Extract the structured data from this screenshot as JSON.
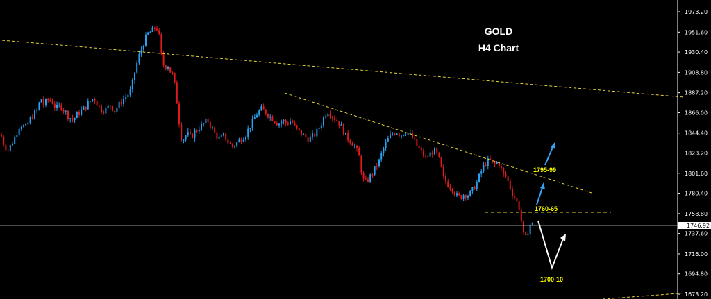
{
  "chart_data": {
    "type": "candlestick",
    "title": "GOLD",
    "subtitle": "H4 Chart",
    "y_ticks": [
      "1973.20",
      "1951.60",
      "1930.40",
      "1908.80",
      "1887.20",
      "1866.00",
      "1844.40",
      "1823.20",
      "1801.60",
      "1780.40",
      "1758.80",
      "1737.60",
      "1716.00",
      "1694.80",
      "1673.20"
    ],
    "ylim": [
      1673.2,
      1973.2
    ],
    "current_price": "1746.92",
    "levels": [
      {
        "label": "1795-99"
      },
      {
        "label": "1760-65"
      },
      {
        "label": "1700-10"
      }
    ],
    "grid": false,
    "colors": {
      "background": "#000000",
      "bull": "#2aa0ee",
      "bear": "#e01b1b",
      "trendline": "#e6d23a",
      "price_line": "#c8c8c8"
    },
    "close_path": [
      [
        0,
        1843
      ],
      [
        5,
        1832
      ],
      [
        10,
        1826
      ],
      [
        16,
        1833
      ],
      [
        22,
        1843
      ],
      [
        28,
        1854
      ],
      [
        36,
        1850
      ],
      [
        44,
        1861
      ],
      [
        52,
        1868
      ],
      [
        58,
        1882
      ],
      [
        62,
        1874
      ],
      [
        68,
        1880
      ],
      [
        74,
        1878
      ],
      [
        80,
        1870
      ],
      [
        86,
        1874
      ],
      [
        92,
        1868
      ],
      [
        98,
        1862
      ],
      [
        104,
        1858
      ],
      [
        110,
        1864
      ],
      [
        116,
        1868
      ],
      [
        122,
        1872
      ],
      [
        128,
        1878
      ],
      [
        134,
        1882
      ],
      [
        140,
        1874
      ],
      [
        146,
        1868
      ],
      [
        152,
        1870
      ],
      [
        158,
        1874
      ],
      [
        164,
        1868
      ],
      [
        170,
        1874
      ],
      [
        176,
        1880
      ],
      [
        182,
        1884
      ],
      [
        188,
        1890
      ],
      [
        192,
        1906
      ],
      [
        196,
        1918
      ],
      [
        200,
        1928
      ],
      [
        204,
        1936
      ],
      [
        208,
        1944
      ],
      [
        212,
        1950
      ],
      [
        216,
        1952
      ],
      [
        220,
        1954
      ],
      [
        224,
        1958
      ],
      [
        228,
        1948
      ],
      [
        232,
        1922
      ],
      [
        236,
        1914
      ],
      [
        240,
        1918
      ],
      [
        244,
        1910
      ],
      [
        248,
        1906
      ],
      [
        252,
        1890
      ],
      [
        256,
        1862
      ],
      [
        260,
        1840
      ],
      [
        264,
        1838
      ],
      [
        268,
        1844
      ],
      [
        274,
        1840
      ],
      [
        280,
        1846
      ],
      [
        286,
        1850
      ],
      [
        292,
        1854
      ],
      [
        298,
        1858
      ],
      [
        304,
        1850
      ],
      [
        310,
        1842
      ],
      [
        316,
        1838
      ],
      [
        322,
        1842
      ],
      [
        328,
        1834
      ],
      [
        334,
        1830
      ],
      [
        340,
        1834
      ],
      [
        346,
        1838
      ],
      [
        352,
        1842
      ],
      [
        358,
        1850
      ],
      [
        364,
        1858
      ],
      [
        370,
        1866
      ],
      [
        376,
        1870
      ],
      [
        382,
        1866
      ],
      [
        388,
        1862
      ],
      [
        394,
        1858
      ],
      [
        400,
        1854
      ],
      [
        406,
        1858
      ],
      [
        412,
        1854
      ],
      [
        418,
        1858
      ],
      [
        424,
        1850
      ],
      [
        430,
        1846
      ],
      [
        436,
        1842
      ],
      [
        442,
        1838
      ],
      [
        448,
        1840
      ],
      [
        454,
        1844
      ],
      [
        460,
        1852
      ],
      [
        466,
        1862
      ],
      [
        470,
        1868
      ],
      [
        474,
        1866
      ],
      [
        478,
        1862
      ],
      [
        484,
        1858
      ],
      [
        490,
        1852
      ],
      [
        494,
        1846
      ],
      [
        498,
        1840
      ],
      [
        504,
        1836
      ],
      [
        510,
        1830
      ],
      [
        516,
        1820
      ],
      [
        520,
        1802
      ],
      [
        524,
        1790
      ],
      [
        528,
        1794
      ],
      [
        534,
        1800
      ],
      [
        540,
        1808
      ],
      [
        546,
        1816
      ],
      [
        550,
        1826
      ],
      [
        554,
        1832
      ],
      [
        558,
        1838
      ],
      [
        564,
        1844
      ],
      [
        570,
        1846
      ],
      [
        576,
        1842
      ],
      [
        582,
        1846
      ],
      [
        588,
        1844
      ],
      [
        594,
        1838
      ],
      [
        600,
        1830
      ],
      [
        606,
        1824
      ],
      [
        612,
        1818
      ],
      [
        618,
        1822
      ],
      [
        624,
        1826
      ],
      [
        630,
        1820
      ],
      [
        634,
        1808
      ],
      [
        638,
        1796
      ],
      [
        644,
        1790
      ],
      [
        650,
        1786
      ],
      [
        656,
        1778
      ],
      [
        662,
        1776
      ],
      [
        668,
        1780
      ],
      [
        674,
        1778
      ],
      [
        680,
        1784
      ],
      [
        686,
        1792
      ],
      [
        692,
        1804
      ],
      [
        698,
        1812
      ],
      [
        704,
        1816
      ],
      [
        710,
        1810
      ],
      [
        716,
        1814
      ],
      [
        720,
        1808
      ],
      [
        724,
        1800
      ],
      [
        728,
        1798
      ],
      [
        732,
        1790
      ],
      [
        736,
        1782
      ],
      [
        740,
        1776
      ],
      [
        744,
        1770
      ],
      [
        748,
        1762
      ],
      [
        752,
        1738
      ],
      [
        756,
        1732
      ],
      [
        760,
        1742
      ],
      [
        764,
        1750
      ],
      [
        766,
        1747
      ]
    ]
  }
}
